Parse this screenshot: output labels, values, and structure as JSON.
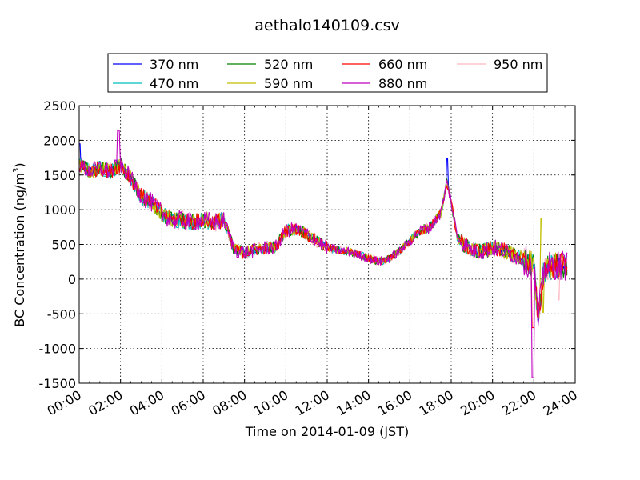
{
  "chart_data": {
    "type": "line",
    "title": "aethalo140109.csv",
    "xlabel": "Time on 2014-01-09 (JST)",
    "ylabel": "BC Concentration (ng/m",
    "ylabel_sup": "3",
    "ylabel_end": ")",
    "xlim": [
      "00:00",
      "24:00"
    ],
    "ylim": [
      -1500,
      2500
    ],
    "grid": true,
    "legend_position": "upper-center",
    "x_ticks": [
      "00:00",
      "02:00",
      "04:00",
      "06:00",
      "08:00",
      "10:00",
      "12:00",
      "14:00",
      "16:00",
      "18:00",
      "20:00",
      "22:00",
      "24:00"
    ],
    "y_ticks": [
      2500,
      2000,
      1500,
      1000,
      500,
      0,
      -500,
      -1000,
      -1500
    ],
    "base_profile": {
      "x_hours": [
        0,
        0.5,
        1,
        1.5,
        2,
        2.5,
        3,
        3.5,
        4,
        4.5,
        5,
        5.5,
        6,
        6.5,
        7,
        7.5,
        8,
        8.5,
        9,
        9.5,
        10,
        10.5,
        11,
        11.5,
        12,
        12.5,
        13,
        13.5,
        14,
        14.5,
        15,
        15.5,
        16,
        16.5,
        17,
        17.5,
        17.8,
        18,
        18.3,
        18.6,
        19,
        19.5,
        20,
        20.5,
        21,
        21.5,
        22,
        22.2,
        22.5,
        23,
        23.5
      ],
      "y": [
        1650,
        1550,
        1600,
        1550,
        1650,
        1450,
        1200,
        1100,
        950,
        850,
        850,
        820,
        850,
        820,
        850,
        420,
        380,
        420,
        450,
        450,
        700,
        720,
        650,
        550,
        450,
        420,
        400,
        350,
        300,
        250,
        300,
        400,
        550,
        700,
        750,
        950,
        1400,
        1100,
        600,
        500,
        420,
        400,
        450,
        420,
        350,
        280,
        200,
        -600,
        150,
        200,
        200
      ]
    },
    "series": [
      {
        "name": "370 nm",
        "color": "#0000ff"
      },
      {
        "name": "470 nm",
        "color": "#00bfbf"
      },
      {
        "name": "520 nm",
        "color": "#008000"
      },
      {
        "name": "590 nm",
        "color": "#bfbf00"
      },
      {
        "name": "660 nm",
        "color": "#ff0000"
      },
      {
        "name": "880 nm",
        "color": "#bf00bf"
      },
      {
        "name": "950 nm",
        "color": "#ffb6c1"
      }
    ]
  }
}
